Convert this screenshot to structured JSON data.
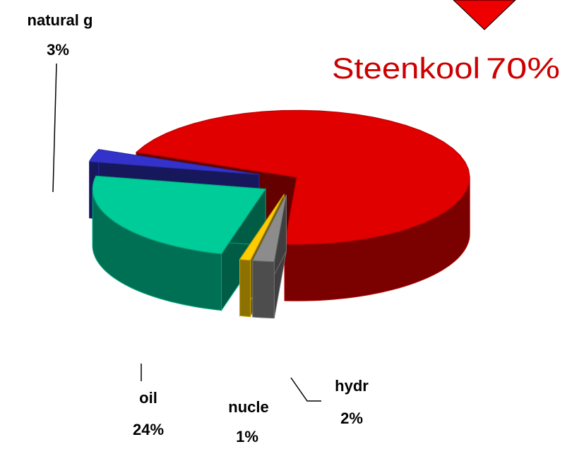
{
  "chart_data": {
    "type": "pie",
    "categories": [
      "natural g",
      "oil",
      "nucle",
      "hydr",
      "Steenkool"
    ],
    "values": [
      3,
      24,
      1,
      2,
      70
    ],
    "value_labels": [
      "3%",
      "24%",
      "1%",
      "2%",
      "70%"
    ],
    "colors": [
      "#3333cc",
      "#00cc99",
      "#ffcc00",
      "#8c8c8c",
      "#e00000"
    ]
  }
}
